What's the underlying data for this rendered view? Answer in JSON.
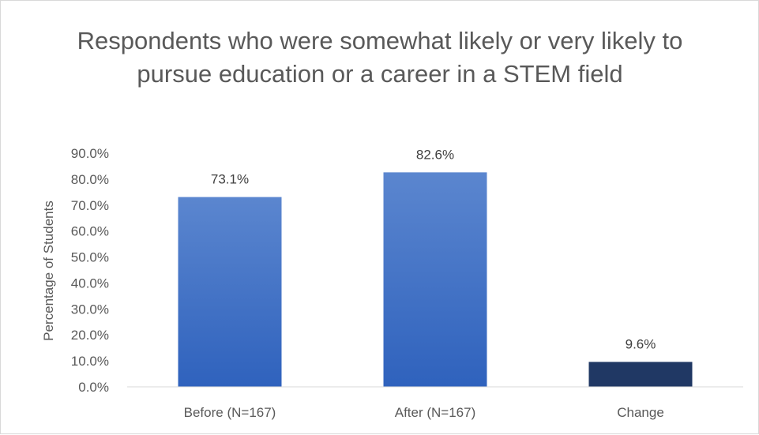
{
  "chart_data": {
    "type": "bar",
    "title": "Respondents who were somewhat likely or very likely to pursue education or a career in a STEM field",
    "ylabel": "Percentage of Students",
    "xlabel": "",
    "categories": [
      "Before (N=167)",
      "After (N=167)",
      "Change"
    ],
    "values": [
      73.1,
      82.6,
      9.6
    ],
    "data_labels": [
      "73.1%",
      "82.6%",
      "9.6%"
    ],
    "ylim": [
      0,
      90
    ],
    "y_ticks": [
      0,
      10,
      20,
      30,
      40,
      50,
      60,
      70,
      80,
      90
    ],
    "y_tick_labels": [
      "0.0%",
      "10.0%",
      "20.0%",
      "30.0%",
      "40.0%",
      "50.0%",
      "60.0%",
      "70.0%",
      "80.0%",
      "90.0%"
    ],
    "grid": false,
    "legend": "none",
    "colors": {
      "bar_gradient_top": "#5b86cf",
      "bar_gradient_bottom": "#2f62bd",
      "change_bar": "#203864",
      "axis": "#d9d9d9",
      "text": "#595959"
    }
  }
}
